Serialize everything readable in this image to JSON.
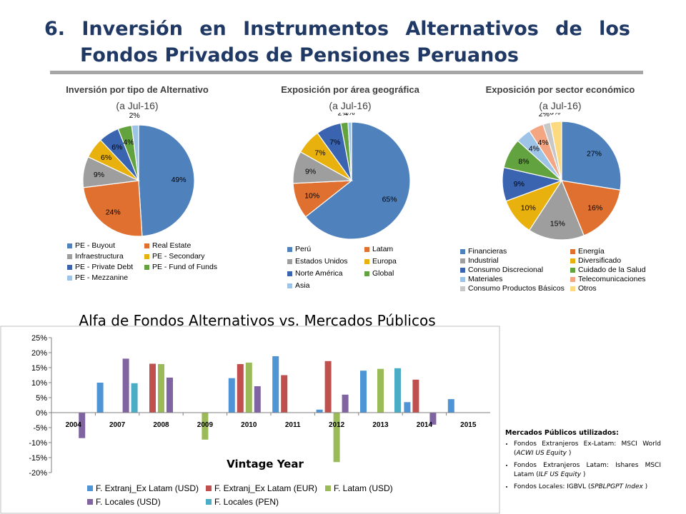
{
  "header": {
    "title_line1_words": [
      "6.",
      "Inversión",
      "en",
      "Instrumentos",
      "Alternativos",
      "de",
      "los"
    ],
    "title_line2": "Fondos Privados de Pensiones Peruanos"
  },
  "chart_data": [
    {
      "type": "pie",
      "title": "Inversión por tipo de Alternativo",
      "subtitle": "(a Jul-16)",
      "start_angle": 0,
      "legend_cols": 2,
      "legend_position": "bottom",
      "slices": [
        {
          "label": "PE - Buyout",
          "value": 49,
          "display": "49%",
          "color": "#4f81bd"
        },
        {
          "label": "Real Estate",
          "value": 24,
          "display": "24%",
          "color": "#e0702f"
        },
        {
          "label": "Infraestructura",
          "value": 9,
          "display": "9%",
          "color": "#9e9e9e"
        },
        {
          "label": "PE - Secondary",
          "value": 6,
          "display": "6%",
          "color": "#e8b10e"
        },
        {
          "label": "PE - Private Debt",
          "value": 6,
          "display": "6%",
          "color": "#3b64b0"
        },
        {
          "label": "PE - Fund of Funds",
          "value": 4,
          "display": "4%",
          "color": "#62a23f"
        },
        {
          "label": "PE - Mezzanine",
          "value": 2,
          "display": "2%",
          "color": "#9dc3e6"
        }
      ]
    },
    {
      "type": "pie",
      "title": "Exposición por área geográfica",
      "subtitle": "(a Jul-16)",
      "start_angle": 0,
      "legend_cols": 2,
      "legend_position": "bottom",
      "slices": [
        {
          "label": "Perú",
          "value": 65,
          "display": "65%",
          "color": "#4f81bd"
        },
        {
          "label": "Latam",
          "value": 10,
          "display": "10%",
          "color": "#e0702f"
        },
        {
          "label": "Estados Unidos",
          "value": 9,
          "display": "9%",
          "color": "#9e9e9e"
        },
        {
          "label": "Europa",
          "value": 7,
          "display": "7%",
          "color": "#e8b10e"
        },
        {
          "label": "Norte América",
          "value": 7,
          "display": "7%",
          "color": "#3b64b0"
        },
        {
          "label": "Global",
          "value": 2,
          "display": "2%",
          "color": "#62a23f"
        },
        {
          "label": "Asia",
          "value": 1,
          "display": "1%",
          "color": "#9dc3e6"
        }
      ]
    },
    {
      "type": "pie",
      "title": "Exposición por sector económico",
      "subtitle": "(a Jul-16)",
      "start_angle": 0,
      "legend_cols": 2,
      "legend_position": "bottom",
      "slices": [
        {
          "label": "Financieras",
          "value": 27,
          "display": "27%",
          "color": "#4f81bd"
        },
        {
          "label": "Energía",
          "value": 16,
          "display": "16%",
          "color": "#e0702f"
        },
        {
          "label": "Industrial",
          "value": 15,
          "display": "15%",
          "color": "#9e9e9e"
        },
        {
          "label": "Diversificado",
          "value": 10,
          "display": "10%",
          "color": "#e8b10e"
        },
        {
          "label": "Consumo Discrecional",
          "value": 9,
          "display": "9%",
          "color": "#3b64b0"
        },
        {
          "label": "Cuidado de la Salud",
          "value": 8,
          "display": "8%",
          "color": "#62a23f"
        },
        {
          "label": "Materiales",
          "value": 4,
          "display": "4%",
          "color": "#9dc3e6"
        },
        {
          "label": "Telecomunicaciones",
          "value": 4,
          "display": "4%",
          "color": "#f4a582"
        },
        {
          "label": "Consumo Productos Básicos",
          "value": 2,
          "display": "2%",
          "color": "#c8c8c8"
        },
        {
          "label": "Otros",
          "value": 3,
          "display": "3%",
          "color": "#fdd980"
        }
      ]
    },
    {
      "type": "bar",
      "title": "Alfa de Fondos Alternativos vs. Mercados Públicos",
      "xlabel": "Vintage Year",
      "ylabel": "",
      "ylim": [
        -20,
        25
      ],
      "yticks": [
        -20,
        -15,
        -10,
        -5,
        0,
        5,
        10,
        15,
        20,
        25
      ],
      "ytick_suffix": "%",
      "grid": false,
      "legend_position": "bottom",
      "categories": [
        "2004",
        "2007",
        "2008",
        "2009",
        "2010",
        "2011",
        "2012",
        "2013",
        "2014",
        "2015"
      ],
      "series": [
        {
          "name": "F. Extranj_Ex Latam (USD)",
          "color": "#4f94d4",
          "values": [
            null,
            10,
            null,
            null,
            11.5,
            18.8,
            1,
            14,
            3.5,
            4.5
          ]
        },
        {
          "name": "F. Extranj_Ex Latam (EUR)",
          "color": "#c0504d",
          "values": [
            null,
            null,
            16.3,
            null,
            16.2,
            12.5,
            17.2,
            null,
            11,
            null
          ]
        },
        {
          "name": "F. Latam (USD)",
          "color": "#9bbb59",
          "values": [
            null,
            null,
            16.2,
            -9,
            16.7,
            null,
            -16.5,
            14.6,
            null,
            null
          ]
        },
        {
          "name": "F. Locales (USD)",
          "color": "#8064a2",
          "values": [
            -8.5,
            18,
            11.7,
            null,
            8.8,
            null,
            6,
            null,
            -4,
            null
          ]
        },
        {
          "name": "F. Locales (PEN)",
          "color": "#4bacc6",
          "values": [
            null,
            9.8,
            null,
            null,
            null,
            null,
            null,
            14.8,
            null,
            null
          ]
        }
      ]
    }
  ],
  "note": {
    "heading": "Mercados Públicos utilizados:",
    "items": [
      {
        "text": "Fondos Extranjeros Ex-Latam: MSCI World (",
        "ticker": "ACWI US Equity",
        "close": " )"
      },
      {
        "text": "Fondos Extranjeros Latam: Ishares MSCI Latam (",
        "ticker": "ILF US Equity",
        "close": " )"
      },
      {
        "text": "Fondos Locales: IGBVL (",
        "ticker": "SPBLPGPT Index",
        "close": " )"
      }
    ]
  }
}
